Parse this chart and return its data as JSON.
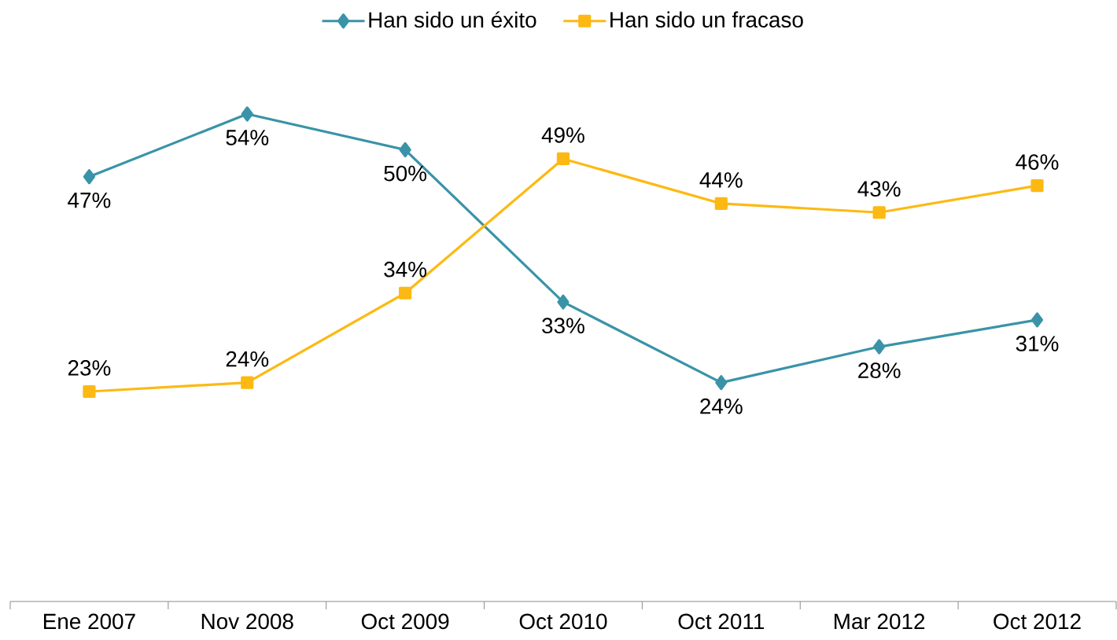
{
  "chart_data": {
    "type": "line",
    "categories": [
      "Ene 2007",
      "Nov 2008",
      "Oct 2009",
      "Oct 2010",
      "Oct 2011",
      "Mar 2012",
      "Oct 2012"
    ],
    "series": [
      {
        "name": "Han sido un éxito",
        "color": "#3a93a8",
        "marker": "diamond",
        "values": [
          47,
          54,
          50,
          33,
          24,
          28,
          31
        ],
        "value_labels": [
          "47%",
          "54%",
          "50%",
          "33%",
          "24%",
          "28%",
          "31%"
        ]
      },
      {
        "name": "Han sido un fracaso",
        "color": "#fdb913",
        "marker": "square",
        "values": [
          23,
          24,
          34,
          49,
          44,
          43,
          46
        ],
        "value_labels": [
          "23%",
          "24%",
          "34%",
          "49%",
          "44%",
          "43%",
          "46%"
        ]
      }
    ],
    "tick_labels": "x",
    "legend": "top",
    "line_style": "solid"
  }
}
